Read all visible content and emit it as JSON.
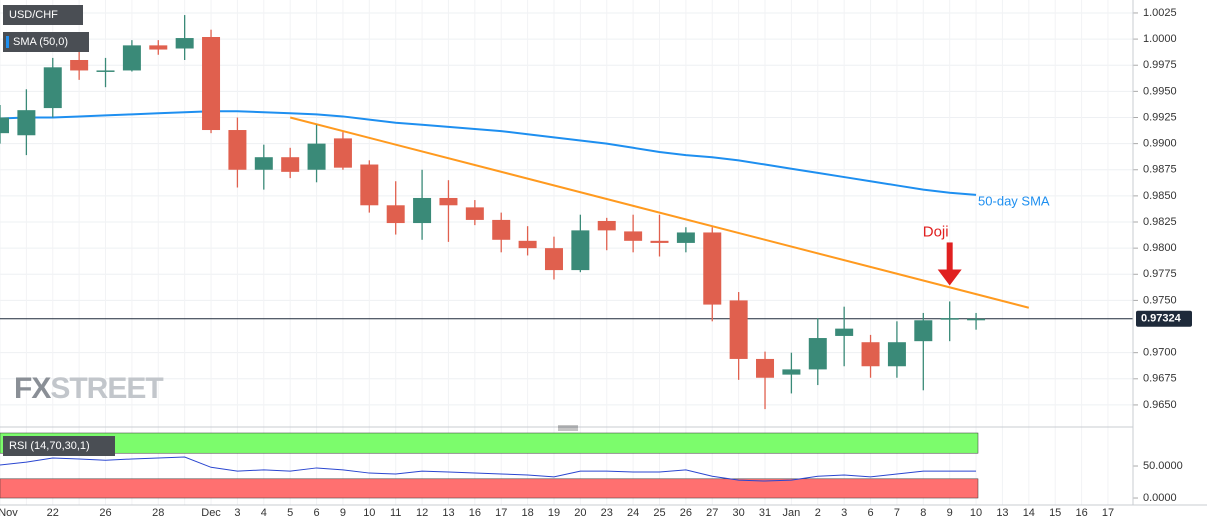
{
  "chart_data": {
    "type": "candlestick",
    "title": "USD/CHF",
    "categories": [
      "Nov",
      null,
      "22",
      null,
      "26",
      null,
      "28",
      null,
      "Dec",
      "3",
      "4",
      "5",
      "6",
      "9",
      "10",
      "11",
      "12",
      "13",
      "16",
      "17",
      "18",
      "19",
      "20",
      "23",
      "24",
      "25",
      "26",
      "27",
      "30",
      "31",
      "Jan",
      "2",
      "3",
      "6",
      "7",
      "8",
      "9",
      "10",
      "13",
      "14",
      "15",
      "16",
      "17"
    ],
    "open": [
      0.991,
      0.9908,
      0.9934,
      0.998,
      0.9969,
      0.997,
      0.9994,
      0.9991,
      1.0002,
      0.9913,
      0.9875,
      0.9887,
      0.9875,
      0.9905,
      0.988,
      0.9841,
      0.9824,
      0.9848,
      0.9839,
      0.9827,
      0.9807,
      0.98,
      0.9779,
      0.9826,
      0.9816,
      0.9807,
      0.9805,
      0.9815,
      0.975,
      0.9694,
      0.9679,
      0.9684,
      0.9716,
      0.971,
      0.9687,
      0.9711,
      0.9732,
      0.9732,
      null,
      null,
      null,
      null,
      null
    ],
    "high": [
      0.9937,
      0.9952,
      0.9982,
      0.999,
      0.9982,
      0.9999,
      0.9999,
      1.0023,
      1.0009,
      0.9925,
      0.9899,
      0.9896,
      0.9918,
      0.9911,
      0.9884,
      0.9864,
      0.9875,
      0.9865,
      0.9846,
      0.9834,
      0.9821,
      0.9811,
      0.9832,
      0.9829,
      0.9832,
      0.9832,
      0.982,
      0.982,
      0.9758,
      0.9701,
      0.97,
      0.9733,
      0.9744,
      0.9717,
      0.973,
      0.9738,
      0.9749,
      0.9738,
      null,
      null,
      null,
      null,
      null
    ],
    "low": [
      0.99,
      0.9889,
      0.9925,
      0.9961,
      0.9954,
      0.9969,
      0.9985,
      0.998,
      0.991,
      0.9858,
      0.9856,
      0.9867,
      0.9863,
      0.9875,
      0.9834,
      0.9813,
      0.9808,
      0.9806,
      0.9822,
      0.9796,
      0.9793,
      0.977,
      0.9777,
      0.9798,
      0.9796,
      0.9792,
      0.9796,
      0.973,
      0.9674,
      0.9646,
      0.9661,
      0.9669,
      0.9687,
      0.9676,
      0.9676,
      0.9664,
      0.9711,
      0.9722,
      null,
      null,
      null,
      null,
      null
    ],
    "close": [
      0.9925,
      0.9932,
      0.9973,
      0.997,
      0.997,
      0.9994,
      0.999,
      1.0001,
      0.9913,
      0.9875,
      0.9887,
      0.9873,
      0.99,
      0.9877,
      0.9841,
      0.9824,
      0.9848,
      0.9841,
      0.9827,
      0.9808,
      0.98,
      0.9779,
      0.9817,
      0.9817,
      0.9807,
      0.9805,
      0.9815,
      0.9746,
      0.9694,
      0.9676,
      0.9684,
      0.9714,
      0.9723,
      0.9687,
      0.971,
      0.9731,
      0.9733,
      0.97324,
      null,
      null,
      null,
      null,
      null
    ],
    "up_color": "#3a8a78",
    "down_color": "#e0604e",
    "ylim": [
      0.96308,
      1.00374
    ],
    "yticks": [
      1.0025,
      {
        "value": 1,
        "label": "1.0000"
      },
      0.9975,
      {
        "value": 0.995,
        "label": "0.9950"
      },
      0.9925,
      {
        "value": 0.99,
        "label": "0.9900"
      },
      0.9875,
      {
        "value": 0.985,
        "label": "0.9850"
      },
      0.9825,
      {
        "value": 0.98,
        "label": "0.9800"
      },
      0.9775,
      {
        "value": 0.975,
        "label": "0.9750"
      },
      {
        "value": 0.97,
        "label": "0.9700"
      },
      0.9675,
      {
        "value": 0.965,
        "label": "0.9650"
      }
    ],
    "grid": true,
    "last_price": 0.97324,
    "watermark": [
      "FX",
      "STREET"
    ],
    "sma": {
      "label": "SMA (50,0)",
      "name": "50-day SMA",
      "color": "#1e8ff0",
      "values": [
        0.9924,
        0.9925,
        0.9925,
        0.9926,
        0.9927,
        0.9928,
        0.9929,
        0.993,
        0.9931,
        0.9931,
        0.993,
        0.9929,
        0.9928,
        0.9926,
        0.9923,
        0.992,
        0.9918,
        0.9916,
        0.9914,
        0.9912,
        0.9909,
        0.9906,
        0.9903,
        0.99,
        0.9896,
        0.9892,
        0.9889,
        0.9887,
        0.9884,
        0.988,
        0.9876,
        0.9872,
        0.9868,
        0.9864,
        0.986,
        0.9856,
        0.9853,
        0.9851,
        null,
        null,
        null,
        null,
        null
      ]
    },
    "trendline": {
      "color": "#ff9a1f",
      "x": [
        11,
        39
      ],
      "y": [
        0.9925,
        0.9743
      ]
    },
    "annotation": {
      "text": "Doji",
      "index": 36,
      "color": "#e02020"
    },
    "rsi": {
      "label": "RSI (14,70,30,1)",
      "color": "#2a46d0",
      "upper": 70,
      "lower": 30,
      "upper_color": "#7cfc6c",
      "lower_color": "#ff7070",
      "ylim": [
        -10.9,
        109.4
      ],
      "yticks": [
        {
          "value": 50,
          "label": "50.0000"
        },
        {
          "value": 0,
          "label": "0.0000"
        }
      ],
      "values": [
        51.6,
        56,
        62.5,
        61,
        59,
        61,
        62.5,
        64,
        48,
        42,
        44,
        42,
        47,
        44,
        39,
        37.5,
        42,
        40.6,
        39,
        37.5,
        36,
        33,
        42,
        42,
        40.6,
        40.6,
        44,
        34,
        28,
        26.5,
        28,
        34,
        36,
        33,
        37.5,
        42,
        42,
        42,
        null,
        null,
        null,
        null,
        null
      ]
    }
  }
}
